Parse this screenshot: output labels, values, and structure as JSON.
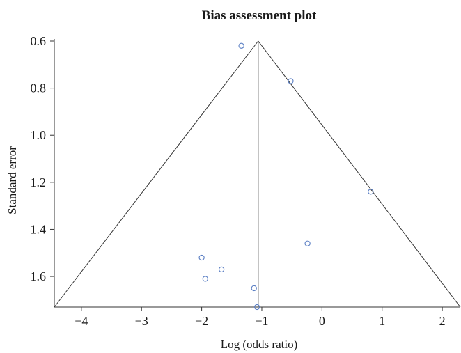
{
  "chart_data": {
    "type": "scatter",
    "title": "Bias assessment plot",
    "xlabel": "Log (odds ratio)",
    "ylabel": "Standard error",
    "xlim": [
      -4.45,
      2.3
    ],
    "ylim": [
      0.6,
      1.73
    ],
    "y_inverted": true,
    "x_ticks": [
      -4,
      -3,
      -2,
      -1,
      0,
      1,
      2
    ],
    "x_tick_labels": [
      "−4",
      "−3",
      "−2",
      "−1",
      "0",
      "1",
      "2"
    ],
    "y_ticks": [
      0.6,
      0.8,
      1.0,
      1.2,
      1.4,
      1.6
    ],
    "y_tick_labels": [
      "0.6",
      "0.8",
      "1.0",
      "1.2",
      "1.4",
      "1.6"
    ],
    "pooled_estimate": -1.06,
    "funnel": {
      "apex": [
        -1.06,
        0.6
      ],
      "base_left": [
        -4.45,
        1.73
      ],
      "base_right": [
        2.3,
        1.73
      ]
    },
    "points": [
      {
        "x": -1.34,
        "y": 0.62
      },
      {
        "x": -0.52,
        "y": 0.77
      },
      {
        "x": 0.81,
        "y": 1.24
      },
      {
        "x": -0.24,
        "y": 1.46
      },
      {
        "x": -2.0,
        "y": 1.52
      },
      {
        "x": -1.67,
        "y": 1.57
      },
      {
        "x": -1.94,
        "y": 1.61
      },
      {
        "x": -1.13,
        "y": 1.65
      },
      {
        "x": -1.08,
        "y": 1.73
      }
    ],
    "point_color": "#5b7fc4",
    "grid": false,
    "legend": "none"
  }
}
